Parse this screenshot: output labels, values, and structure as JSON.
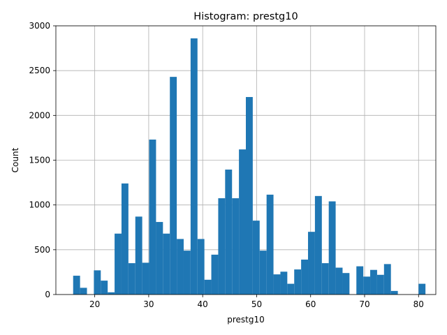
{
  "chart_data": {
    "type": "bar",
    "title": "Histogram: prestg10",
    "xlabel": "prestg10",
    "ylabel": "Count",
    "xlim": [
      12.8,
      83.2
    ],
    "ylim": [
      0,
      3000
    ],
    "bin_start": 16,
    "bin_width": 1.28,
    "values": [
      210,
      75,
      0,
      270,
      155,
      25,
      680,
      1240,
      350,
      870,
      355,
      1730,
      810,
      680,
      2430,
      620,
      490,
      2860,
      620,
      165,
      445,
      1075,
      1395,
      1075,
      1620,
      2205,
      825,
      490,
      1115,
      225,
      255,
      120,
      280,
      390,
      700,
      1100,
      350,
      1040,
      300,
      240,
      0,
      315,
      200,
      275,
      220,
      340,
      40,
      0,
      0,
      0,
      120
    ],
    "xticks": [
      20,
      30,
      40,
      50,
      60,
      70,
      80
    ],
    "yticks": [
      0,
      500,
      1000,
      1500,
      2000,
      2500,
      3000
    ],
    "grid": true,
    "bar_color": "#1f77b4"
  }
}
